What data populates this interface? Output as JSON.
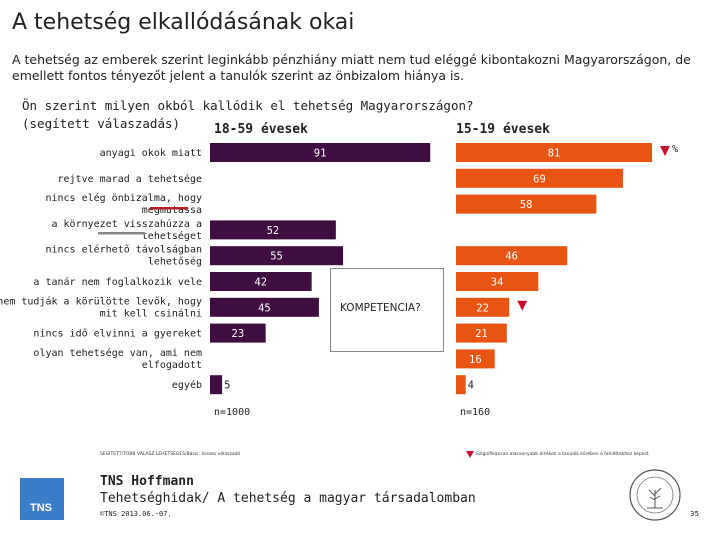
{
  "title": "A tehetség elkallódásának okai",
  "subtitle": "A tehetség az emberek szerint leginkább pénzhiány miatt nem tud eléggé kibontakozni Magyarországon, de emellett fontos tényezőt jelent a tanulók szerint az önbizalom hiánya is.",
  "question": "Ön szerint milyen okból kallódik el tehetség Magyarországon?",
  "note": "(segített válaszadás)",
  "percent_sign": "%",
  "komp_label": "KOMPETENCIA?",
  "footer_left": "SEGÍTETT/TOBB VÁLASZ LEHETSÉGES/Bázis: összes válaszadó",
  "footer_right": "Szignifikánsan alacsonyabb értékek a tanulók körében a felnőttekhez képest",
  "brand": "TNS Hoffmann",
  "project": "Tehetséghidak/ A tehetség a magyar társadalomban",
  "copyright": "©TNS 2013.06.-07.",
  "page_number": "35",
  "logo_text": "TNS",
  "colors": {
    "adult": "#3f0d3f",
    "student": "#e85412",
    "marker": "#c8102e",
    "underline_red": "#b22222",
    "underline_gray": "#888888"
  },
  "chart_data": {
    "type": "bar",
    "orientation": "horizontal",
    "unit": "%",
    "categories": [
      "anyagi okok miatt",
      "rejtve marad a tehetsége",
      "nincs elég önbizalma, hogy megmutassa",
      "a környezet visszahúzza a tehetséget",
      "nincs elérhető távolságban lehetőség",
      "a tanár nem foglalkozik vele",
      "nem tudják a körülötte levők, hogy mit kell csinálni",
      "nincs idő elvinni a gyereket",
      "olyan tehetsége van, ami nem elfogadott",
      "egyéb"
    ],
    "series": [
      {
        "name": "18-59 évesek",
        "n_label": "n=1000",
        "values": [
          91,
          null,
          null,
          52,
          55,
          42,
          45,
          23,
          null,
          5
        ]
      },
      {
        "name": "15-19 évesek",
        "n_label": "n=160",
        "values": [
          81,
          69,
          58,
          null,
          46,
          34,
          22,
          21,
          16,
          4
        ]
      }
    ],
    "significant_lower": [
      0,
      6
    ],
    "xlim": [
      0,
      100
    ]
  }
}
